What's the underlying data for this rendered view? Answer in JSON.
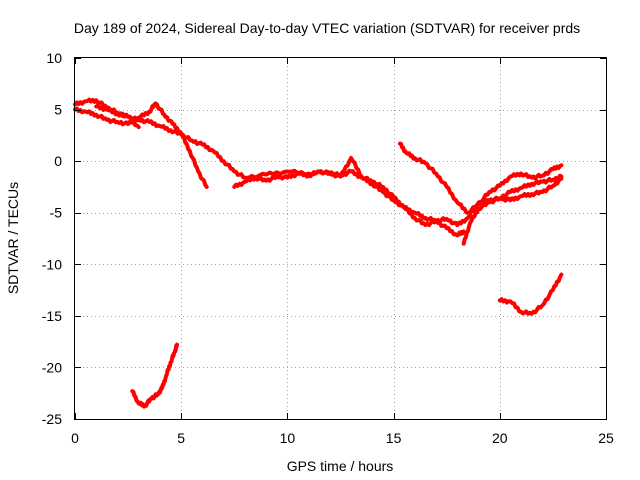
{
  "chart_data": {
    "type": "line",
    "title": "Day 189 of 2024, Sidereal Day-to-day VTEC variation (SDTVAR) for receiver prds",
    "xlabel": "GPS time / hours",
    "ylabel": "SDTVAR / TECUs",
    "xlim": [
      0,
      25
    ],
    "ylim": [
      -25,
      10
    ],
    "xticks": [
      0,
      5,
      10,
      15,
      20,
      25
    ],
    "yticks": [
      -25,
      -20,
      -15,
      -10,
      -5,
      0,
      5,
      10
    ],
    "xtick_labels": [
      "0",
      "5",
      "10",
      "15",
      "20",
      "25"
    ],
    "ytick_labels": [
      "-25",
      "-20",
      "-15",
      "-10",
      "-5",
      "0",
      "5",
      "10"
    ],
    "grid": true,
    "color": "#ff0000",
    "series": [
      {
        "name": "s1",
        "x": [
          0,
          0.5,
          1.0,
          1.5,
          2.0,
          2.5,
          3.0
        ],
        "y": [
          5.5,
          5.8,
          5.9,
          5.2,
          4.7,
          4.3,
          3.3
        ]
      },
      {
        "name": "s2",
        "x": [
          0,
          0.5,
          1.0,
          1.5,
          2.0,
          2.5,
          3.0,
          3.5,
          3.8,
          4.2,
          4.6,
          5.0,
          5.4,
          5.8,
          6.2
        ],
        "y": [
          5.0,
          4.8,
          4.5,
          4.0,
          3.8,
          3.6,
          4.2,
          4.8,
          5.6,
          4.5,
          3.6,
          2.7,
          1.0,
          -1.0,
          -2.5
        ]
      },
      {
        "name": "s3",
        "x": [
          1.0,
          1.5,
          2.0,
          2.5,
          3.0,
          3.5,
          4.0,
          4.5,
          5.0,
          5.5,
          6.0,
          6.5,
          7.0,
          7.5,
          8.0,
          9.0,
          10.0,
          11.0,
          12.0,
          12.5,
          13.0,
          13.5,
          14.0,
          14.5,
          15.0,
          15.5,
          16.0,
          16.5,
          17.0,
          17.5,
          18.0,
          18.5,
          19.0,
          19.5,
          20.0,
          20.5,
          21.0,
          21.5,
          22.0,
          22.5,
          22.9
        ],
        "y": [
          5.3,
          5.0,
          4.6,
          4.3,
          4.0,
          3.8,
          3.4,
          3.0,
          2.6,
          2.0,
          1.6,
          1.0,
          0,
          -1.0,
          -1.6,
          -1.3,
          -1.0,
          -1.2,
          -1.1,
          -1.4,
          -1.0,
          -1.6,
          -2.2,
          -3.0,
          -3.8,
          -4.5,
          -5.0,
          -5.5,
          -5.8,
          -5.6,
          -6.2,
          -5.5,
          -4.0,
          -3.8,
          -3.6,
          -3.8,
          -3.4,
          -3.2,
          -3.0,
          -2.4,
          -1.7
        ]
      },
      {
        "name": "s4",
        "x": [
          7.5,
          8.0,
          8.5,
          9.0,
          9.5,
          10.0,
          10.5,
          11.0,
          11.5,
          12.0,
          12.5,
          13.0,
          13.5,
          14.0,
          14.5,
          15.0,
          15.5,
          16.0,
          16.5,
          17.0,
          17.5,
          18.0,
          18.3
        ],
        "y": [
          -2.5,
          -2.0,
          -1.6,
          -1.9,
          -1.5,
          -1.6,
          -1.2,
          -1.4,
          -1.0,
          -1.2,
          -1.5,
          0.3,
          -1.5,
          -2.0,
          -2.5,
          -3.5,
          -4.5,
          -5.5,
          -6.2,
          -5.8,
          -6.5,
          -7.2,
          -6.8
        ]
      },
      {
        "name": "s5",
        "x": [
          15.3,
          15.6,
          16.0,
          16.5,
          17.0,
          17.5,
          18.0,
          18.5,
          19.0,
          19.5,
          20.0,
          20.5,
          21.0,
          21.5,
          22.0,
          22.5,
          22.9
        ],
        "y": [
          1.7,
          0.8,
          0.3,
          -0.2,
          -1.2,
          -2.5,
          -4.0,
          -5.0,
          -4.2,
          -3.0,
          -2.4,
          -1.5,
          -1.2,
          -1.6,
          -1.4,
          -0.8,
          -0.4
        ]
      },
      {
        "name": "s6",
        "x": [
          18.3,
          18.6,
          19.0,
          19.5,
          20.0,
          20.5,
          21.0,
          21.5,
          22.0,
          22.5,
          22.9
        ],
        "y": [
          -8.0,
          -6.0,
          -4.6,
          -4.0,
          -3.6,
          -3.0,
          -2.6,
          -2.2,
          -2.0,
          -1.8,
          -1.5
        ]
      },
      {
        "name": "s7",
        "x": [
          20.0,
          20.5,
          21.0,
          21.5,
          22.0,
          22.5,
          22.9
        ],
        "y": [
          -13.5,
          -13.6,
          -14.6,
          -14.8,
          -14.0,
          -12.5,
          -11.0
        ]
      },
      {
        "name": "s8",
        "x": [
          2.7,
          3.0,
          3.3,
          3.6,
          3.9,
          4.1,
          4.3,
          4.5,
          4.7,
          4.8
        ],
        "y": [
          -22.3,
          -23.5,
          -23.7,
          -23.0,
          -22.6,
          -22.0,
          -20.8,
          -19.5,
          -18.5,
          -17.8
        ]
      }
    ]
  }
}
